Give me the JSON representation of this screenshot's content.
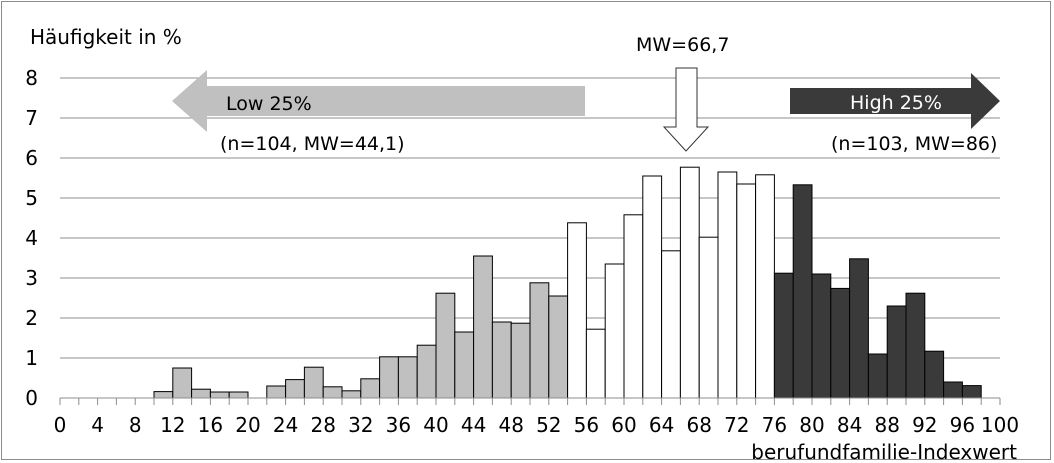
{
  "chart_data": {
    "type": "bar",
    "ylabel": "Häufigkeit in %",
    "xlabel": "berufundfamilie-Indexwert",
    "ylim": [
      0,
      8
    ],
    "xlim": [
      0,
      100
    ],
    "yticks": [
      "0",
      "1",
      "2",
      "3",
      "4",
      "5",
      "6",
      "7",
      "8"
    ],
    "xticks": [
      "0",
      "4",
      "8",
      "12",
      "16",
      "20",
      "24",
      "28",
      "32",
      "36",
      "40",
      "44",
      "48",
      "52",
      "56",
      "60",
      "64",
      "68",
      "72",
      "76",
      "80",
      "84",
      "88",
      "92",
      "96",
      "100"
    ],
    "grid": true,
    "bin_width": 2,
    "bins": [
      {
        "x": 10,
        "value": 0.16,
        "group": "low"
      },
      {
        "x": 12,
        "value": 0.75,
        "group": "low"
      },
      {
        "x": 14,
        "value": 0.22,
        "group": "low"
      },
      {
        "x": 16,
        "value": 0.15,
        "group": "low"
      },
      {
        "x": 18,
        "value": 0.15,
        "group": "low"
      },
      {
        "x": 22,
        "value": 0.3,
        "group": "low"
      },
      {
        "x": 24,
        "value": 0.46,
        "group": "low"
      },
      {
        "x": 26,
        "value": 0.77,
        "group": "low"
      },
      {
        "x": 28,
        "value": 0.28,
        "group": "low"
      },
      {
        "x": 30,
        "value": 0.18,
        "group": "low"
      },
      {
        "x": 32,
        "value": 0.48,
        "group": "low"
      },
      {
        "x": 34,
        "value": 1.03,
        "group": "low"
      },
      {
        "x": 36,
        "value": 1.03,
        "group": "low"
      },
      {
        "x": 38,
        "value": 1.32,
        "group": "low"
      },
      {
        "x": 40,
        "value": 2.62,
        "group": "low"
      },
      {
        "x": 42,
        "value": 1.65,
        "group": "low"
      },
      {
        "x": 44,
        "value": 3.55,
        "group": "low"
      },
      {
        "x": 46,
        "value": 1.9,
        "group": "low"
      },
      {
        "x": 48,
        "value": 1.87,
        "group": "low"
      },
      {
        "x": 50,
        "value": 2.88,
        "group": "low"
      },
      {
        "x": 52,
        "value": 2.55,
        "group": "low"
      },
      {
        "x": 54,
        "value": 4.38,
        "group": "mid"
      },
      {
        "x": 56,
        "value": 1.72,
        "group": "mid"
      },
      {
        "x": 58,
        "value": 3.35,
        "group": "mid"
      },
      {
        "x": 60,
        "value": 4.58,
        "group": "mid"
      },
      {
        "x": 62,
        "value": 5.55,
        "group": "mid"
      },
      {
        "x": 64,
        "value": 3.68,
        "group": "mid"
      },
      {
        "x": 66,
        "value": 5.77,
        "group": "mid"
      },
      {
        "x": 68,
        "value": 4.02,
        "group": "mid"
      },
      {
        "x": 70,
        "value": 5.65,
        "group": "mid"
      },
      {
        "x": 72,
        "value": 5.35,
        "group": "mid"
      },
      {
        "x": 74,
        "value": 5.58,
        "group": "mid"
      },
      {
        "x": 76,
        "value": 3.12,
        "group": "high"
      },
      {
        "x": 78,
        "value": 5.33,
        "group": "high"
      },
      {
        "x": 80,
        "value": 3.1,
        "group": "high"
      },
      {
        "x": 82,
        "value": 2.74,
        "group": "high"
      },
      {
        "x": 84,
        "value": 3.48,
        "group": "high"
      },
      {
        "x": 86,
        "value": 1.1,
        "group": "high"
      },
      {
        "x": 88,
        "value": 2.3,
        "group": "high"
      },
      {
        "x": 90,
        "value": 2.62,
        "group": "high"
      },
      {
        "x": 92,
        "value": 1.17,
        "group": "high"
      },
      {
        "x": 94,
        "value": 0.4,
        "group": "high"
      },
      {
        "x": 96,
        "value": 0.31,
        "group": "high"
      }
    ],
    "colors": {
      "low": "#c0c0c0",
      "mid": "#ffffff",
      "high": "#3a3a3a",
      "grid": "#8c8c8c",
      "low_arrow": "#c0c0c0",
      "high_arrow": "#3a3a3a",
      "high_arrow_text": "#ffffff"
    },
    "annotations": {
      "low_label": "Low 25%",
      "low_stats": "(n=104, MW=44,1)",
      "high_label": "High 25%",
      "high_stats": "(n=103, MW=86)",
      "mean_label": "MW=66,7",
      "mean_value": 66.7
    }
  }
}
